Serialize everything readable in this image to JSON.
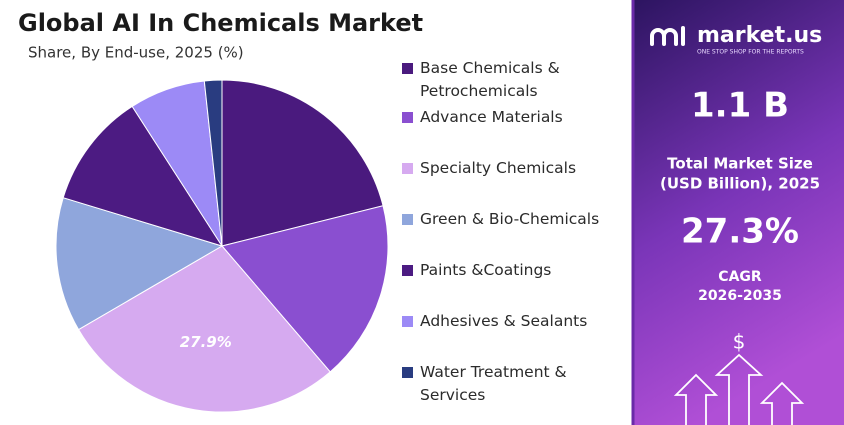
{
  "chart_data": {
    "type": "pie",
    "title": "Global AI In Chemicals Market",
    "subtitle": "Share, By End-use, 2025 (%)",
    "categories": [
      "Base Chemicals & Petrochemicals",
      "Advance Materials",
      "Specialty Chemicals",
      "Green & Bio-Chemicals",
      "Paints &Coatings",
      "Adhesives & Sealants",
      "Water Treatment & Services"
    ],
    "values": [
      21.1,
      17.6,
      27.9,
      13.1,
      11.2,
      7.4,
      1.7
    ],
    "value_labels": [
      null,
      null,
      "27.9%",
      null,
      null,
      null,
      null
    ],
    "colors": [
      "#4a1a7e",
      "#8a4fd0",
      "#d6aaf0",
      "#8fa6dc",
      "#4c1b82",
      "#9c8af6",
      "#293c80"
    ]
  },
  "sidebar": {
    "logo": "market.us",
    "tagline": "ONE STOP SHOP FOR THE REPORTS",
    "market_size": "1.1 B",
    "market_size_label_1": "Total Market Size",
    "market_size_label_2": "(USD Billion), 2025",
    "cagr": "27.3%",
    "cagr_label": "CAGR",
    "cagr_period": "2026-2035",
    "icon_symbol": "$"
  }
}
